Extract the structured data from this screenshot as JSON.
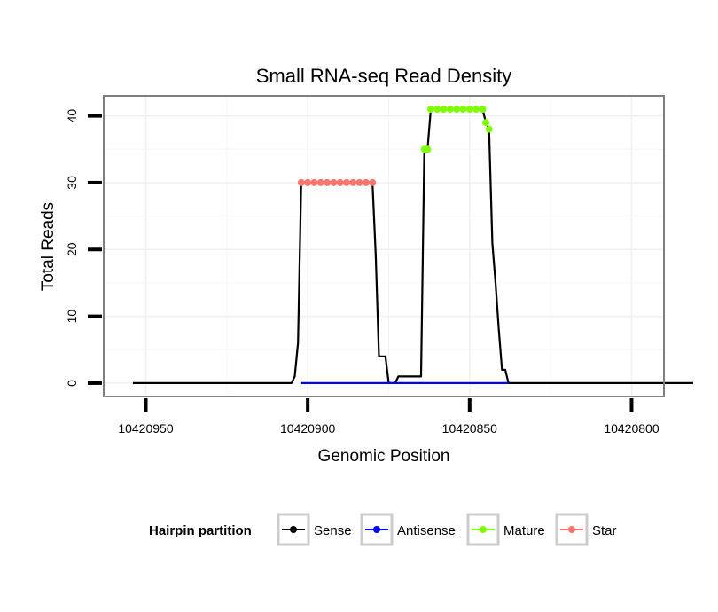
{
  "chart_data": {
    "type": "line",
    "title": "Small RNA-seq Read Density",
    "xlabel": "Genomic Position",
    "ylabel": "Total Reads",
    "x_reversed": true,
    "xlim": [
      10420963,
      10420790
    ],
    "ylim": [
      -2,
      43
    ],
    "x_ticks": [
      {
        "value": 10420950,
        "label": "10420950"
      },
      {
        "value": 10420900,
        "label": "10420900"
      },
      {
        "value": 10420850,
        "label": "10420850"
      },
      {
        "value": 10420800,
        "label": "10420800"
      }
    ],
    "y_ticks": [
      {
        "value": 0,
        "label": "0"
      },
      {
        "value": 10,
        "label": "10"
      },
      {
        "value": 20,
        "label": "20"
      },
      {
        "value": 30,
        "label": "30"
      },
      {
        "value": 40,
        "label": "40"
      }
    ],
    "grid": true,
    "legend": {
      "title": "Hairpin partition",
      "position": "bottom",
      "entries": [
        {
          "name": "Sense",
          "color": "#000000"
        },
        {
          "name": "Antisense",
          "color": "#0000ff"
        },
        {
          "name": "Mature",
          "color": "#7fff00"
        },
        {
          "name": "Star",
          "color": "#f8766d"
        }
      ]
    },
    "series": [
      {
        "name": "Sense",
        "color": "#000000",
        "kind": "line",
        "points": [
          [
            10420954,
            0
          ],
          [
            10420905,
            0
          ],
          [
            10420904,
            1
          ],
          [
            10420903,
            6
          ],
          [
            10420902,
            30
          ],
          [
            10420880,
            30
          ],
          [
            10420879,
            19
          ],
          [
            10420878,
            4
          ],
          [
            10420876,
            4
          ],
          [
            10420875,
            0
          ],
          [
            10420873,
            0
          ],
          [
            10420872,
            1
          ],
          [
            10420865,
            1
          ],
          [
            10420864,
            35
          ],
          [
            10420863,
            35
          ],
          [
            10420862,
            41
          ],
          [
            10420846,
            41
          ],
          [
            10420845,
            39
          ],
          [
            10420844,
            38
          ],
          [
            10420843,
            21
          ],
          [
            10420842,
            15
          ],
          [
            10420841,
            8
          ],
          [
            10420840,
            2
          ],
          [
            10420839,
            2
          ],
          [
            10420838,
            0
          ],
          [
            10420781,
            0
          ]
        ]
      },
      {
        "name": "Antisense",
        "color": "#0000ff",
        "kind": "line",
        "points": [
          [
            10420902,
            0
          ],
          [
            10420838,
            0
          ]
        ]
      },
      {
        "name": "Star",
        "color": "#f8766d",
        "kind": "points",
        "points": [
          [
            10420902,
            30
          ],
          [
            10420900,
            30
          ],
          [
            10420898,
            30
          ],
          [
            10420896,
            30
          ],
          [
            10420894,
            30
          ],
          [
            10420892,
            30
          ],
          [
            10420890,
            30
          ],
          [
            10420888,
            30
          ],
          [
            10420886,
            30
          ],
          [
            10420884,
            30
          ],
          [
            10420882,
            30
          ],
          [
            10420880,
            30
          ]
        ]
      },
      {
        "name": "Mature",
        "color": "#7fff00",
        "kind": "points",
        "points": [
          [
            10420864,
            35
          ],
          [
            10420863,
            35
          ],
          [
            10420862,
            41
          ],
          [
            10420860,
            41
          ],
          [
            10420858,
            41
          ],
          [
            10420856,
            41
          ],
          [
            10420854,
            41
          ],
          [
            10420852,
            41
          ],
          [
            10420850,
            41
          ],
          [
            10420848,
            41
          ],
          [
            10420846,
            41
          ],
          [
            10420845,
            39
          ],
          [
            10420844,
            38
          ]
        ]
      }
    ]
  }
}
